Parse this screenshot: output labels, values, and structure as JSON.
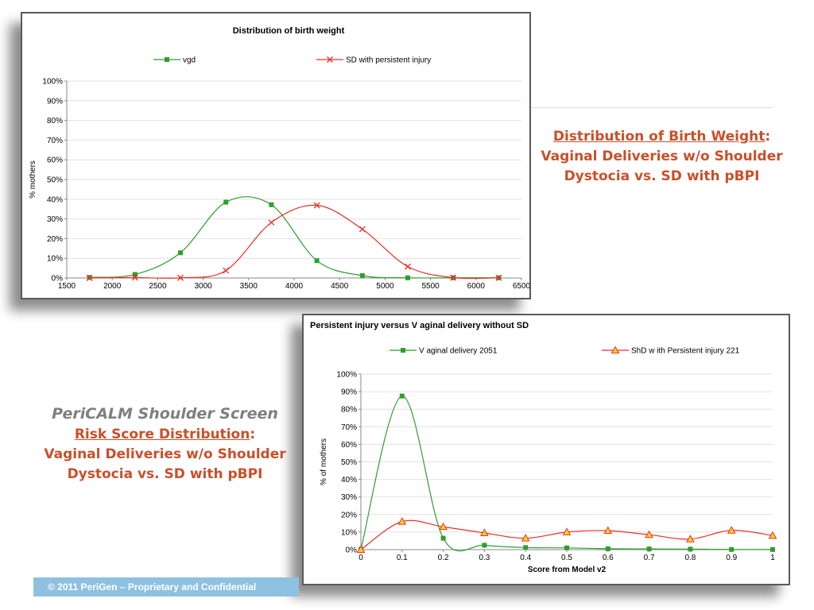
{
  "captions": {
    "weight": {
      "heading": "Distribution of Birth Weight",
      "colon": ":",
      "line2": "Vaginal Deliveries w/o Shoulder",
      "line3": "Dystocia vs. SD with pBPI"
    },
    "risk": {
      "title": "PeriCALM Shoulder Screen",
      "heading": "Risk Score Distribution",
      "colon": ":",
      "line2": "Vaginal Deliveries w/o Shoulder",
      "line3": "Dystocia vs. SD with pBPI"
    }
  },
  "footer": {
    "text": "© 2011 PeriGen – Proprietary and Confidential"
  },
  "chart_data": [
    {
      "type": "line",
      "title": "Distribution of birth weight",
      "xlabel": "",
      "ylabel": "% mothers",
      "xlim": [
        1500,
        6500
      ],
      "xticks": [
        1500,
        2000,
        2500,
        3000,
        3500,
        4000,
        4500,
        5000,
        5500,
        6000,
        6500
      ],
      "ylim": [
        0,
        100
      ],
      "yticks": [
        "0%",
        "10%",
        "20%",
        "30%",
        "40%",
        "50%",
        "60%",
        "70%",
        "80%",
        "90%",
        "100%"
      ],
      "grid": true,
      "legend": "top",
      "series": [
        {
          "name": "vgd",
          "color": "#2e9e2e",
          "marker": "square",
          "x": [
            1750,
            2250,
            2750,
            3250,
            3750,
            4250,
            4750,
            5250,
            5750,
            6250
          ],
          "y": [
            0.3,
            1.8,
            12.8,
            38.5,
            37.2,
            8.8,
            1.2,
            0.1,
            0.1,
            0.1
          ]
        },
        {
          "name": "SD with persistent injury",
          "color": "#e8312a",
          "marker": "x",
          "x": [
            1750,
            2250,
            2750,
            3250,
            3750,
            4250,
            4750,
            5250,
            5750,
            6250
          ],
          "y": [
            0,
            0.2,
            0.1,
            3.8,
            28.2,
            36.9,
            24.8,
            5.8,
            0.2,
            0.1
          ]
        }
      ]
    },
    {
      "type": "line",
      "title": "Persistent injury versus V aginal delivery without SD",
      "xlabel": "Score from Model v2",
      "ylabel": "% of mothers",
      "xlim": [
        0,
        1
      ],
      "xticks": [
        "0",
        "0.1",
        "0.2",
        "0.3",
        "0.4",
        "0.5",
        "0.6",
        "0.7",
        "0.8",
        "0.9",
        "1"
      ],
      "ylim": [
        0,
        100
      ],
      "yticks": [
        "0%",
        "10%",
        "20%",
        "30%",
        "40%",
        "50%",
        "60%",
        "70%",
        "80%",
        "90%",
        "100%"
      ],
      "grid": true,
      "legend": "top",
      "series": [
        {
          "name": "V aginal delivery 2051",
          "color": "#2e9e2e",
          "marker": "square",
          "x": [
            0,
            0.1,
            0.2,
            0.3,
            0.4,
            0.5,
            0.6,
            0.7,
            0.8,
            0.9,
            1.0
          ],
          "y": [
            0.2,
            87.5,
            6.5,
            2.5,
            1.2,
            1.0,
            0.5,
            0.4,
            0.3,
            0.1,
            0.1
          ]
        },
        {
          "name": "ShD w ith Persistent injury   221",
          "color": "#e8312a",
          "marker": "triangle",
          "x": [
            0,
            0.1,
            0.2,
            0.3,
            0.4,
            0.5,
            0.6,
            0.7,
            0.8,
            0.9,
            1.0
          ],
          "y": [
            0,
            16,
            13,
            9.5,
            6.5,
            10,
            10.8,
            8.5,
            6,
            11,
            8
          ]
        }
      ]
    }
  ]
}
